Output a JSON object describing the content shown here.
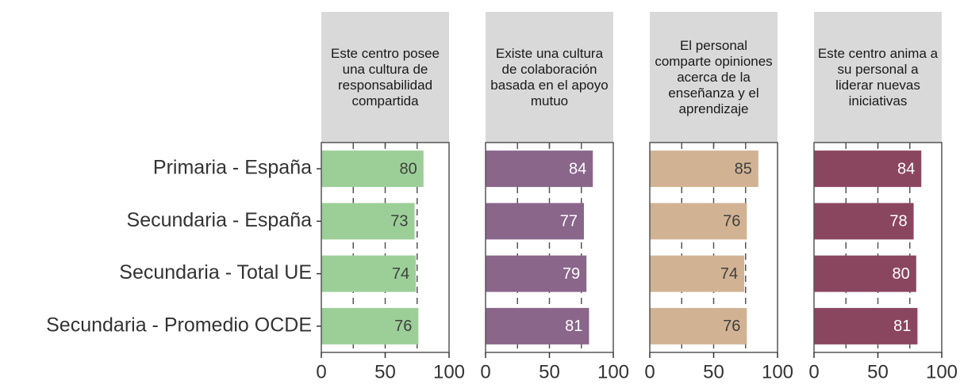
{
  "chart_data": {
    "type": "bar",
    "orientation": "horizontal",
    "categories": [
      "Primaria - España",
      "Secundaria - España",
      "Secundaria - Total UE",
      "Secundaria - Promedio OCDE"
    ],
    "series": [
      {
        "name": "Este centro posee una cultura de responsabilidad compartida",
        "color": "#9ccf98",
        "label_color": "#404040",
        "values": [
          80,
          73,
          74,
          76
        ]
      },
      {
        "name": "Existe una cultura de colaboración basada en el apoyo mutuo",
        "color": "#8a668b",
        "label_color": "#ffffff",
        "values": [
          84,
          77,
          79,
          81
        ]
      },
      {
        "name": "El personal comparte opiniones acerca de la enseñanza y el aprendizaje",
        "color": "#d1b394",
        "label_color": "#404040",
        "values": [
          85,
          76,
          74,
          76
        ]
      },
      {
        "name": "Este centro anima a su personal a liderar nuevas iniciativas",
        "color": "#8b465f",
        "label_color": "#ffffff",
        "values": [
          84,
          78,
          80,
          81
        ]
      }
    ],
    "xlim": [
      0,
      100
    ],
    "xticks": [
      0,
      50,
      100
    ],
    "grid_lines": [
      25,
      50,
      75
    ]
  }
}
